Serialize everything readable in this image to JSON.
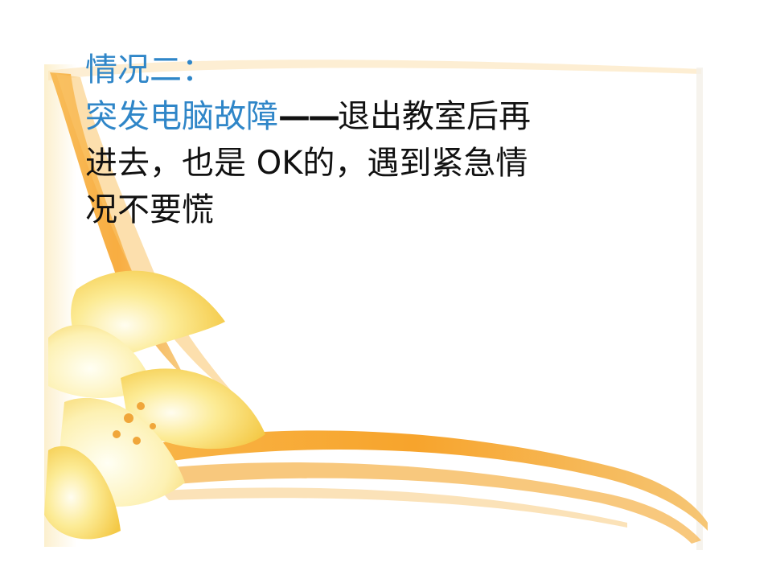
{
  "slide": {
    "heading": "情况二：",
    "topic": "突发电脑故障",
    "dash": "——",
    "line1_rest": "退出教室后再",
    "line2": "进去，也是 OK的，遇到紧急情",
    "line3": "况不要慌"
  },
  "colors": {
    "heading_blue": "#2F86C8",
    "body_text": "#111111",
    "ribbon_orange": "#F5A32B",
    "flower_yellow": "#FBE27A"
  }
}
